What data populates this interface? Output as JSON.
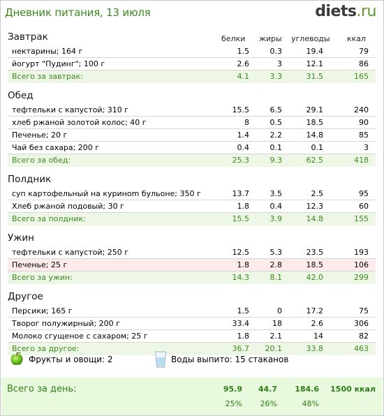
{
  "header": {
    "title": "Дневник питания, 13 июля",
    "logo_main": "diets",
    "logo_suffix": ".ru"
  },
  "columns": {
    "protein": "белки",
    "fat": "жиры",
    "carbs": "углеводы",
    "kcal": "ккал"
  },
  "meals": [
    {
      "title": "Завтрак",
      "items": [
        {
          "name": "нектарины; 164 г",
          "p": "1.5",
          "f": "0.3",
          "c": "19.4",
          "k": "79"
        },
        {
          "name": "йогурт \"Пудинг\"; 100 г",
          "p": "2.6",
          "f": "3",
          "c": "12.1",
          "k": "86"
        }
      ],
      "total": {
        "name": "Всего за завтрак:",
        "p": "4.1",
        "f": "3.3",
        "c": "31.5",
        "k": "165"
      }
    },
    {
      "title": "Обед",
      "items": [
        {
          "name": "тефтельки с капустой; 310 г",
          "p": "15.5",
          "f": "6.5",
          "c": "29.1",
          "k": "240"
        },
        {
          "name": "хлеб ржаной золотой колос; 40 г",
          "p": "8",
          "f": "0.5",
          "c": "18.5",
          "k": "90"
        },
        {
          "name": "Печенье; 20 г",
          "p": "1.4",
          "f": "2.2",
          "c": "14.8",
          "k": "85"
        },
        {
          "name": "Чай без сахара; 200 г",
          "p": "0.4",
          "f": "0.1",
          "c": "0.1",
          "k": "3"
        }
      ],
      "total": {
        "name": "Всего за обед:",
        "p": "25.3",
        "f": "9.3",
        "c": "62.5",
        "k": "418"
      }
    },
    {
      "title": "Полдник",
      "items": [
        {
          "name": "суп картофельный на куриноm бульоне; 350 г",
          "p": "13.7",
          "f": "3.5",
          "c": "2.5",
          "k": "95"
        },
        {
          "name": "Хлеб ржаной подовый; 30 г",
          "p": "1.8",
          "f": "0.4",
          "c": "12.3",
          "k": "60"
        }
      ],
      "total": {
        "name": "Всего за полдник:",
        "p": "15.5",
        "f": "3.9",
        "c": "14.8",
        "k": "155"
      }
    },
    {
      "title": "Ужин",
      "items": [
        {
          "name": "тефтельки с капустой; 250 г",
          "p": "12.5",
          "f": "5.3",
          "c": "23.5",
          "k": "193"
        },
        {
          "name": "Печенье; 25 г",
          "p": "1.8",
          "f": "2.8",
          "c": "18.5",
          "k": "106"
        }
      ],
      "total": {
        "name": "Всего за ужин:",
        "p": "14.3",
        "f": "8.1",
        "c": "42.0",
        "k": "299"
      }
    },
    {
      "title": "Другое",
      "items": [
        {
          "name": "Персики; 165 г",
          "p": "1.5",
          "f": "0",
          "c": "17.2",
          "k": "75"
        },
        {
          "name": "Творог полужирный; 200 г",
          "p": "33.4",
          "f": "18",
          "c": "2.6",
          "k": "306"
        },
        {
          "name": "Молоко сгущеное с сахаром; 25 г",
          "p": "1.8",
          "f": "2.1",
          "c": "14",
          "k": "82"
        }
      ],
      "total": {
        "name": "Всего за другое:",
        "p": "36.7",
        "f": "20.1",
        "c": "33.8",
        "k": "463"
      }
    }
  ],
  "extras": {
    "fruits_label": "Фрукты и овощи: 2",
    "water_label": "Воды выпито: 15 стаканов",
    "fruit_icon": "apple-icon",
    "water_icon": "glass-icon"
  },
  "day_total": {
    "label": "Всего за день:",
    "protein": "95.9",
    "fat": "44.7",
    "carbs": "184.6",
    "kcal": "1500 ккал",
    "protein_pct": "25%",
    "fat_pct": "26%",
    "carbs_pct": "48%"
  },
  "colors": {
    "accent_green": "#3a8a1e",
    "total_row_bg": "#eef7e6",
    "highlight_row_bg": "#fdeaea",
    "day_total_bg": "#e9f9dd"
  }
}
